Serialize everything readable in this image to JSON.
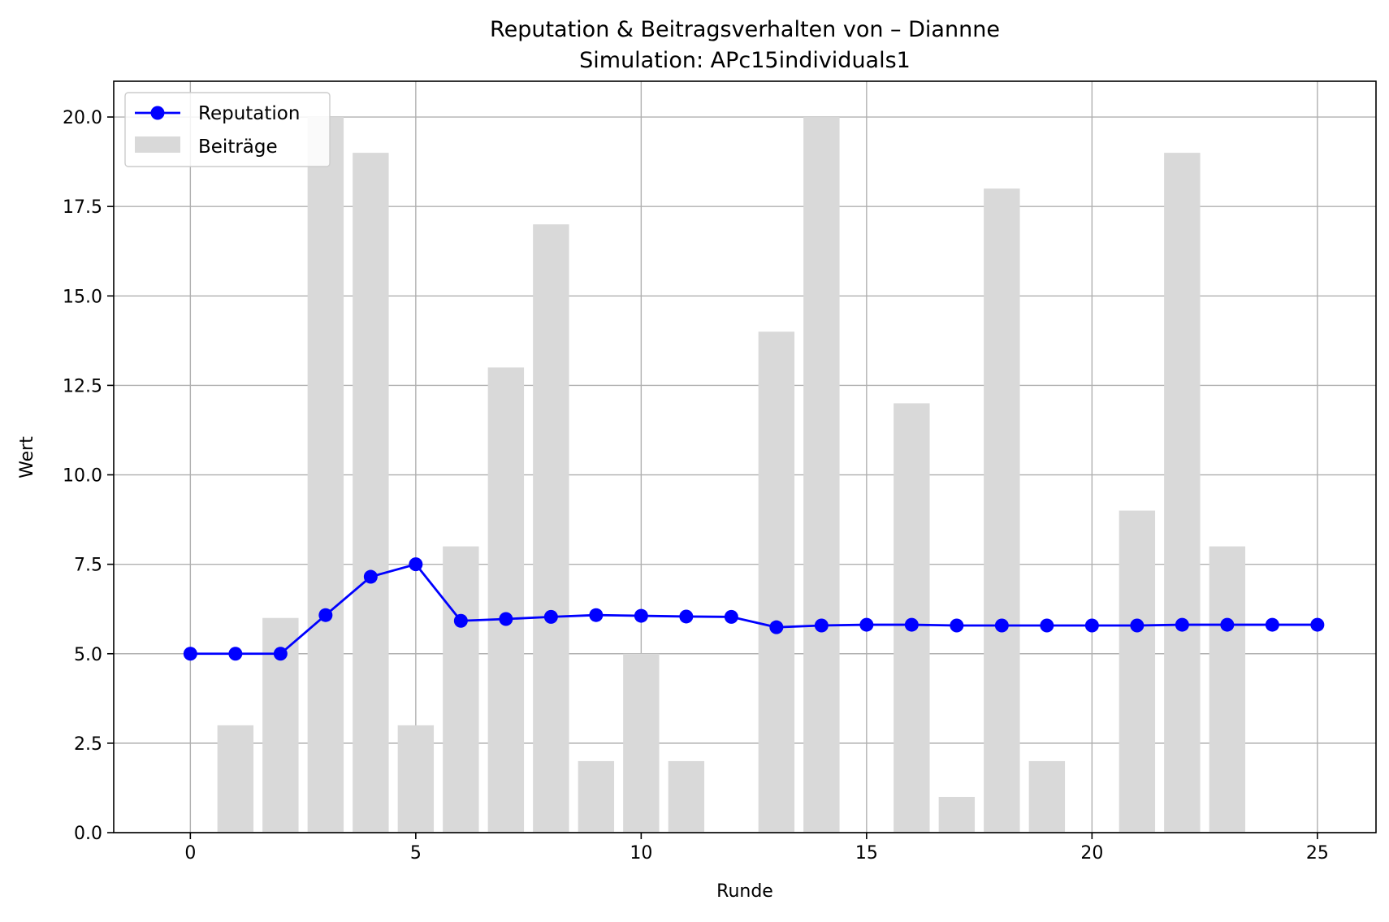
{
  "chart_data": {
    "type": "bar+line",
    "title": "Reputation & Beitragsverhalten von – Diannne",
    "subtitle": "Simulation: APc15individuals1",
    "xlabel": "Runde",
    "ylabel": "Wert",
    "xlim": [
      -1.7,
      26.3
    ],
    "ylim": [
      0,
      21
    ],
    "xticks": [
      0,
      5,
      10,
      15,
      20,
      25
    ],
    "xtick_labels": [
      "0",
      "5",
      "10",
      "15",
      "20",
      "25"
    ],
    "yticks": [
      0,
      2.5,
      5,
      7.5,
      10,
      12.5,
      15,
      17.5,
      20
    ],
    "ytick_labels": [
      "0.0",
      "2.5",
      "5.0",
      "7.5",
      "10.0",
      "12.5",
      "15.0",
      "17.5",
      "20.0"
    ],
    "grid": true,
    "legend_position": "top-left",
    "x": [
      0,
      1,
      2,
      3,
      4,
      5,
      6,
      7,
      8,
      9,
      10,
      11,
      12,
      13,
      14,
      15,
      16,
      17,
      18,
      19,
      20,
      21,
      22,
      23,
      24,
      25
    ],
    "series": [
      {
        "name": "Reputation",
        "kind": "line",
        "marker": "circle",
        "color": "#0000ff",
        "values": [
          5.0,
          5.0,
          5.0,
          6.08,
          7.15,
          7.5,
          5.92,
          5.97,
          6.03,
          6.08,
          6.06,
          6.04,
          6.03,
          5.74,
          5.79,
          5.81,
          5.81,
          5.79,
          5.79,
          5.79,
          5.79,
          5.79,
          5.81,
          5.81,
          5.81,
          5.81
        ]
      },
      {
        "name": "Beiträge",
        "kind": "bar",
        "color": "#d9d9d9",
        "values": [
          0,
          3,
          6,
          20,
          19,
          3,
          8,
          13,
          17,
          2,
          5,
          2,
          0,
          14,
          20,
          0,
          12,
          1,
          18,
          2,
          0,
          9,
          19,
          8,
          0,
          0
        ]
      }
    ]
  }
}
